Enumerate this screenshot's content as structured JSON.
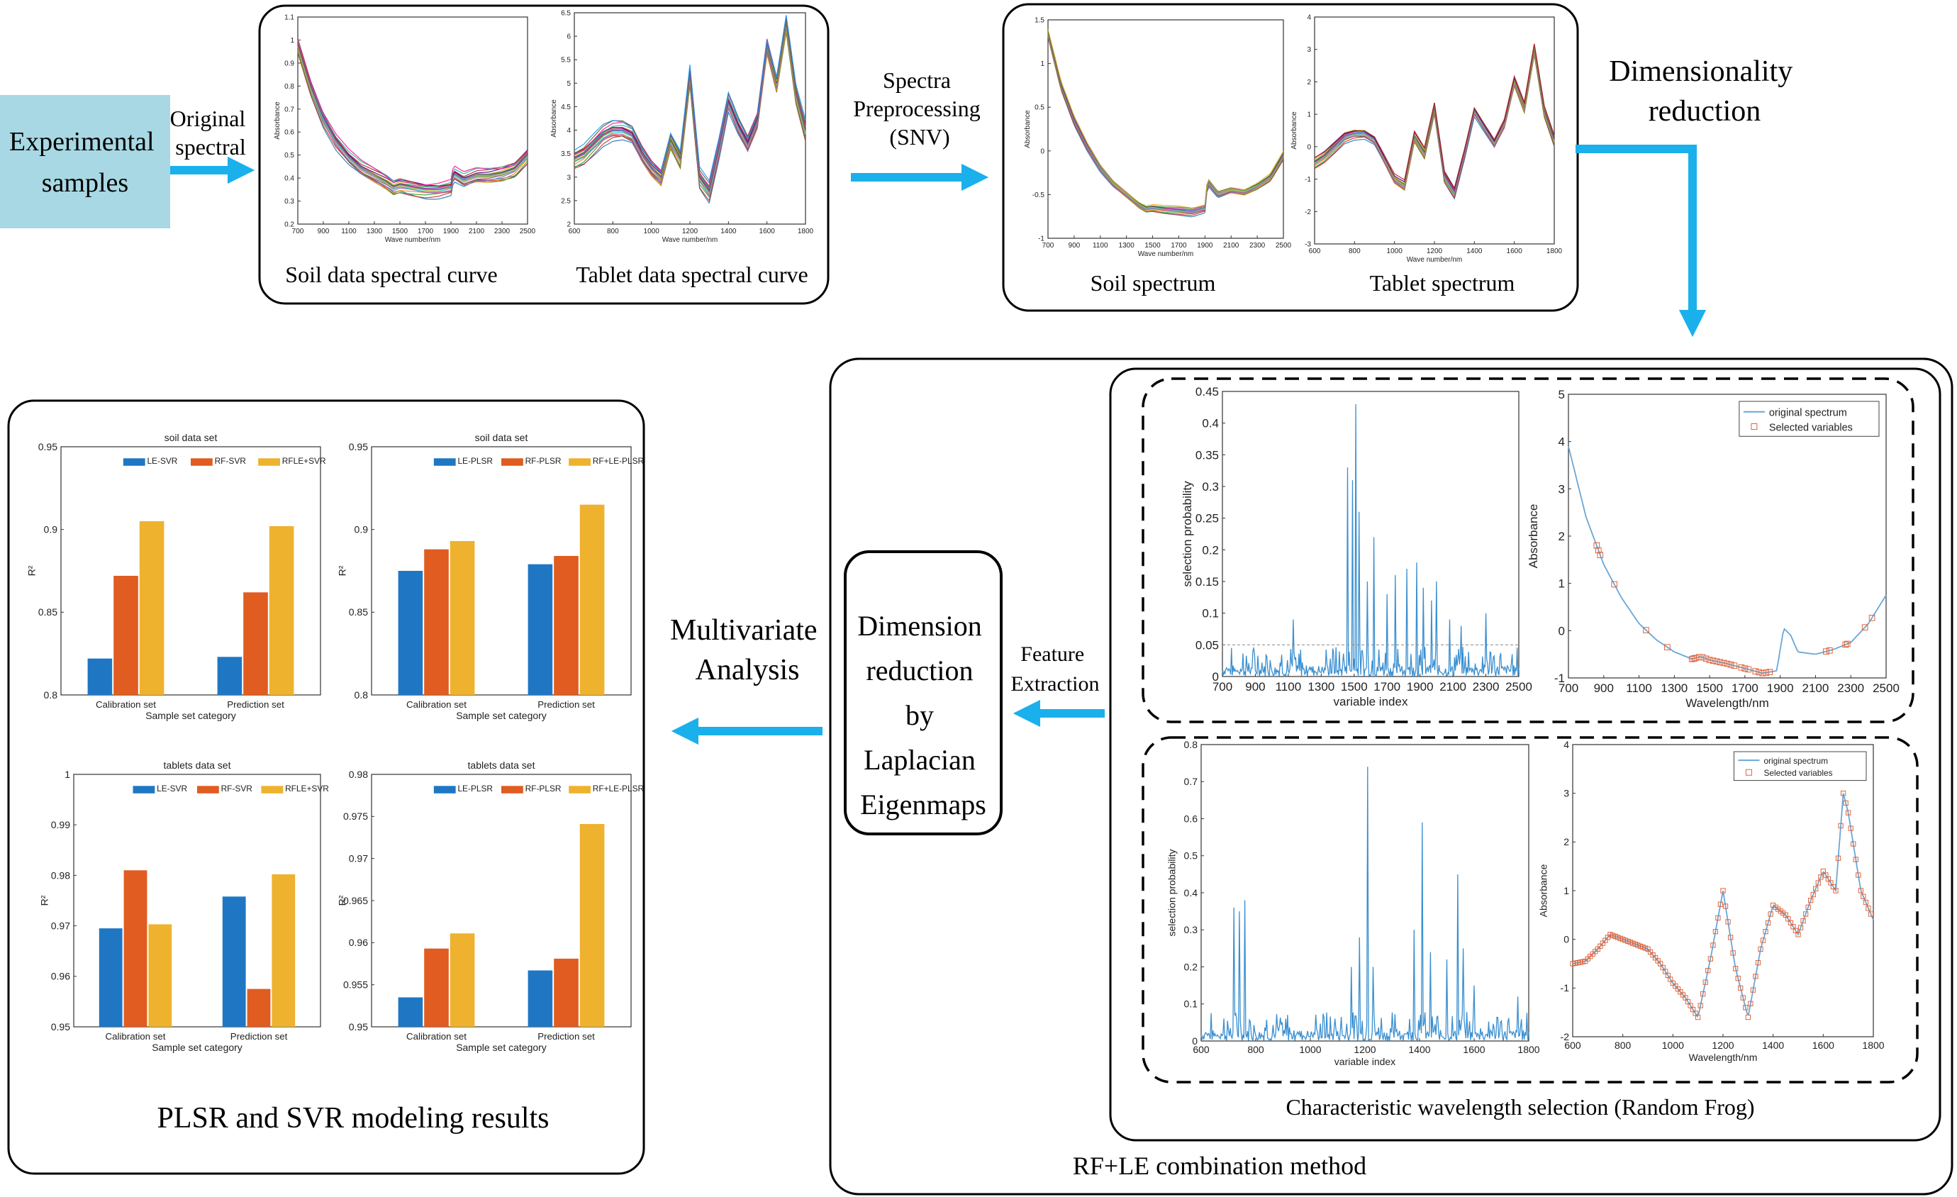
{
  "labels": {
    "experimental_samples": [
      "Experimental",
      "samples"
    ],
    "original_spectral": [
      "Original",
      "spectral"
    ],
    "spectra_preprocessing": [
      "Spectra",
      "Preprocessing",
      "(SNV)"
    ],
    "dimensionality_reduction": [
      "Dimensionality",
      "reduction"
    ],
    "multivariate_analysis": [
      "Multivariate",
      "Analysis"
    ],
    "dimension_reduction_le": [
      "Dimension",
      "reduction",
      "by",
      "Laplacian",
      "Eigenmaps"
    ],
    "feature_extraction": [
      "Feature",
      "Extraction"
    ],
    "soil_data_spectral_curve": "Soil data spectral curve",
    "tablet_data_spectral_curve": "Tablet data spectral curve",
    "soil_spectrum": "Soil spectrum",
    "tablet_spectrum": "Tablet spectrum",
    "characteristic_wavelength_selection": "Characteristic wavelength selection (Random Frog)",
    "rf_le_combination": "RF+LE combination method",
    "plsr_svr_results": "PLSR and SVR modeling results"
  },
  "colors": {
    "arrow": "#1ab0ec",
    "sample_box": "#a8d8e3",
    "bar_blue": "#1f77c4",
    "bar_orange": "#e05c21",
    "bar_yellow": "#eeb22e",
    "spectrum_line": "#3a8fd0",
    "selected_marker": "#e0643a"
  },
  "chart_data": [
    {
      "id": "raw-soil",
      "type": "line",
      "xlabel": "Wave number/nm",
      "ylabel": "Absorbance",
      "xlim": [
        700,
        2500
      ],
      "ylim": [
        0.2,
        1.1
      ],
      "xticks": [
        "700",
        "900",
        "1100",
        "1300",
        "1500",
        "1700",
        "1900",
        "2100",
        "2300",
        "2500"
      ],
      "yticks": [
        "0.2",
        "0.3",
        "0.4",
        "0.5",
        "0.6",
        "0.7",
        "0.8",
        "0.9",
        "1",
        "1.1"
      ],
      "x": [
        700,
        800,
        900,
        1000,
        1100,
        1200,
        1300,
        1400,
        1450,
        1500,
        1600,
        1700,
        1800,
        1900,
        1920,
        2000,
        2100,
        2200,
        2300,
        2400,
        2500
      ],
      "y": [
        0.98,
        0.8,
        0.66,
        0.56,
        0.49,
        0.44,
        0.41,
        0.38,
        0.36,
        0.37,
        0.36,
        0.35,
        0.35,
        0.36,
        0.42,
        0.39,
        0.41,
        0.41,
        0.42,
        0.44,
        0.5
      ],
      "bands": 18,
      "band_spread": 0.03
    },
    {
      "id": "raw-tablet",
      "type": "line",
      "xlabel": "Wave number/nm",
      "ylabel": "Absorbance",
      "xlim": [
        600,
        1800
      ],
      "ylim": [
        2,
        6.5
      ],
      "xticks": [
        "600",
        "800",
        "1000",
        "1200",
        "1400",
        "1600",
        "1800"
      ],
      "yticks": [
        "2",
        "2.5",
        "3",
        "3.5",
        "4",
        "4.5",
        "5",
        "5.5",
        "6",
        "6.5"
      ],
      "x": [
        600,
        650,
        700,
        750,
        800,
        850,
        900,
        950,
        1000,
        1050,
        1100,
        1150,
        1200,
        1250,
        1300,
        1350,
        1400,
        1450,
        1500,
        1550,
        1600,
        1650,
        1700,
        1750,
        1800
      ],
      "y": [
        3.4,
        3.5,
        3.7,
        3.9,
        4.0,
        4.0,
        3.9,
        3.5,
        3.2,
        3.0,
        3.8,
        3.4,
        5.2,
        3.0,
        2.7,
        3.6,
        4.6,
        4.1,
        3.7,
        4.2,
        5.8,
        5.0,
        6.3,
        4.8,
        4.0
      ],
      "bands": 20,
      "band_spread": 0.18
    },
    {
      "id": "snv-soil",
      "type": "line",
      "xlabel": "Wave number/nm",
      "ylabel": "Absorbance",
      "xlim": [
        700,
        2500
      ],
      "ylim": [
        -1,
        1.5
      ],
      "xticks": [
        "700",
        "900",
        "1100",
        "1300",
        "1500",
        "1700",
        "1900",
        "2100",
        "2300",
        "2500"
      ],
      "yticks": [
        "-1",
        "-0.5",
        "0",
        "0.5",
        "1",
        "1.5"
      ],
      "x": [
        700,
        800,
        900,
        1000,
        1100,
        1200,
        1300,
        1400,
        1450,
        1500,
        1600,
        1700,
        1800,
        1900,
        1920,
        2000,
        2100,
        2200,
        2300,
        2400,
        2500
      ],
      "y": [
        1.35,
        0.75,
        0.35,
        0.05,
        -0.2,
        -0.38,
        -0.5,
        -0.62,
        -0.66,
        -0.65,
        -0.67,
        -0.68,
        -0.7,
        -0.66,
        -0.35,
        -0.5,
        -0.45,
        -0.47,
        -0.4,
        -0.3,
        -0.05
      ],
      "bands": 14,
      "band_spread": 0.04
    },
    {
      "id": "snv-tablet",
      "type": "line",
      "xlabel": "Wave number/nm",
      "ylabel": "Absorbance",
      "xlim": [
        600,
        1800
      ],
      "ylim": [
        -3,
        4
      ],
      "xticks": [
        "600",
        "800",
        "1000",
        "1200",
        "1400",
        "1600",
        "1800"
      ],
      "yticks": [
        "-3",
        "-2",
        "-1",
        "0",
        "1",
        "2",
        "3",
        "4"
      ],
      "x": [
        600,
        650,
        700,
        750,
        800,
        850,
        900,
        950,
        1000,
        1050,
        1100,
        1150,
        1200,
        1250,
        1300,
        1350,
        1400,
        1450,
        1500,
        1550,
        1600,
        1650,
        1700,
        1750,
        1800
      ],
      "y": [
        -0.5,
        -0.3,
        0.0,
        0.3,
        0.4,
        0.4,
        0.2,
        -0.4,
        -1.0,
        -1.2,
        0.3,
        -0.2,
        1.2,
        -0.9,
        -1.4,
        -0.2,
        1.1,
        0.6,
        0.1,
        0.7,
        2.0,
        1.2,
        3.0,
        1.1,
        0.2
      ],
      "bands": 16,
      "band_spread": 0.15
    },
    {
      "id": "rf-soil-prob",
      "type": "line",
      "xlabel": "variable index",
      "ylabel": "selection probability",
      "xlim": [
        700,
        2500
      ],
      "ylim": [
        0,
        0.45
      ],
      "xticks": [
        "700",
        "900",
        "1100",
        "1300",
        "1500",
        "1700",
        "1900",
        "2100",
        "2300",
        "2500"
      ],
      "yticks": [
        "0",
        "0.05",
        "0.1",
        "0.15",
        "0.2",
        "0.25",
        "0.3",
        "0.35",
        "0.4",
        "0.45"
      ],
      "threshold": 0.05,
      "spikes": [
        [
          1130,
          0.09
        ],
        [
          1460,
          0.33
        ],
        [
          1490,
          0.31
        ],
        [
          1510,
          0.43
        ],
        [
          1530,
          0.26
        ],
        [
          1580,
          0.15
        ],
        [
          1620,
          0.22
        ],
        [
          1700,
          0.13
        ],
        [
          1750,
          0.16
        ],
        [
          1820,
          0.17
        ],
        [
          1880,
          0.18
        ],
        [
          1920,
          0.14
        ],
        [
          1970,
          0.12
        ],
        [
          2000,
          0.15
        ],
        [
          2080,
          0.09
        ],
        [
          2150,
          0.08
        ],
        [
          2300,
          0.1
        ]
      ],
      "noise_level": 0.03
    },
    {
      "id": "rf-soil-selected",
      "type": "line",
      "xlabel": "Wavelength/nm",
      "ylabel": "Absorbance",
      "xlim": [
        700,
        2500
      ],
      "ylim": [
        -1,
        5
      ],
      "xticks": [
        "700",
        "900",
        "1100",
        "1300",
        "1500",
        "1700",
        "1900",
        "2100",
        "2300",
        "2500"
      ],
      "yticks": [
        "-1",
        "0",
        "1",
        "2",
        "3",
        "4",
        "5"
      ],
      "legend": [
        "original spectrum",
        "Selected variables"
      ],
      "x": [
        700,
        800,
        900,
        1000,
        1100,
        1200,
        1300,
        1400,
        1450,
        1500,
        1600,
        1700,
        1800,
        1880,
        1920,
        1960,
        2000,
        2100,
        2200,
        2300,
        2400,
        2500
      ],
      "y": [
        3.9,
        2.4,
        1.4,
        0.7,
        0.15,
        -0.2,
        -0.45,
        -0.6,
        -0.55,
        -0.62,
        -0.7,
        -0.8,
        -0.9,
        -0.85,
        0.05,
        -0.1,
        -0.45,
        -0.5,
        -0.4,
        -0.25,
        0.15,
        0.75
      ],
      "selected_x": [
        860,
        870,
        880,
        960,
        1140,
        1260,
        1400,
        1410,
        1420,
        1440,
        1460,
        1480,
        1500,
        1520,
        1540,
        1560,
        1580,
        1600,
        1620,
        1640,
        1680,
        1700,
        1720,
        1760,
        1780,
        1800,
        1820,
        1840,
        2160,
        2180,
        2270,
        2280,
        2380,
        2420
      ]
    },
    {
      "id": "rf-tablet-prob",
      "type": "line",
      "xlabel": "variable index",
      "ylabel": "selection probability",
      "xlim": [
        600,
        1800
      ],
      "ylim": [
        0,
        0.8
      ],
      "xticks": [
        "600",
        "800",
        "1000",
        "1200",
        "1400",
        "1600",
        "1800"
      ],
      "yticks": [
        "0",
        "0.1",
        "0.2",
        "0.3",
        "0.4",
        "0.5",
        "0.6",
        "0.7",
        "0.8"
      ],
      "spikes": [
        [
          720,
          0.36
        ],
        [
          740,
          0.35
        ],
        [
          760,
          0.38
        ],
        [
          1150,
          0.2
        ],
        [
          1180,
          0.28
        ],
        [
          1210,
          0.74
        ],
        [
          1230,
          0.2
        ],
        [
          1380,
          0.3
        ],
        [
          1410,
          0.59
        ],
        [
          1440,
          0.24
        ],
        [
          1500,
          0.22
        ],
        [
          1540,
          0.45
        ],
        [
          1560,
          0.25
        ],
        [
          1600,
          0.15
        ],
        [
          1760,
          0.12
        ]
      ],
      "noise_level": 0.05
    },
    {
      "id": "rf-tablet-selected",
      "type": "line",
      "xlabel": "Wavelength/nm",
      "ylabel": "Absorbance",
      "xlim": [
        600,
        1800
      ],
      "ylim": [
        -2,
        4
      ],
      "xticks": [
        "600",
        "800",
        "1000",
        "1200",
        "1400",
        "1600",
        "1800"
      ],
      "yticks": [
        "-2",
        "-1",
        "0",
        "1",
        "2",
        "3",
        "4"
      ],
      "legend": [
        "original spectrum",
        "Selected variables"
      ],
      "x": [
        600,
        650,
        700,
        750,
        800,
        850,
        900,
        950,
        1000,
        1050,
        1100,
        1150,
        1200,
        1250,
        1300,
        1350,
        1400,
        1450,
        1500,
        1550,
        1600,
        1650,
        1680,
        1700,
        1750,
        1800
      ],
      "y": [
        -0.5,
        -0.45,
        -0.2,
        0.1,
        0.0,
        -0.1,
        -0.2,
        -0.5,
        -0.9,
        -1.2,
        -1.6,
        -0.4,
        1.0,
        -0.6,
        -1.6,
        -0.2,
        0.7,
        0.5,
        0.1,
        0.8,
        1.4,
        1.0,
        3.0,
        2.6,
        1.0,
        0.4
      ],
      "selected_range": [
        600,
        1790
      ]
    },
    {
      "id": "soil-svr",
      "type": "bar",
      "title": "soil data set",
      "xlabel": "Sample set category",
      "ylabel": "R²",
      "ylim": [
        0.8,
        0.95
      ],
      "yticks": [
        "0.8",
        "0.85",
        "0.9",
        "0.95"
      ],
      "categories": [
        "Calibration set",
        "Prediction set"
      ],
      "series": [
        {
          "name": "LE-SVR",
          "values": [
            0.822,
            0.823
          ]
        },
        {
          "name": "RF-SVR",
          "values": [
            0.872,
            0.862
          ]
        },
        {
          "name": "RFLE+SVR",
          "values": [
            0.905,
            0.902
          ]
        }
      ]
    },
    {
      "id": "soil-plsr",
      "type": "bar",
      "title": "soil data set",
      "xlabel": "Sample set category",
      "ylabel": "R²",
      "ylim": [
        0.8,
        0.95
      ],
      "yticks": [
        "0.8",
        "0.85",
        "0.9",
        "0.95"
      ],
      "categories": [
        "Calibration set",
        "Prediction set"
      ],
      "series": [
        {
          "name": "LE-PLSR",
          "values": [
            0.875,
            0.879
          ]
        },
        {
          "name": "RF-PLSR",
          "values": [
            0.888,
            0.884
          ]
        },
        {
          "name": "RF+LE-PLSR",
          "values": [
            0.893,
            0.915
          ]
        }
      ]
    },
    {
      "id": "tablet-svr",
      "type": "bar",
      "title": "tablets data set",
      "xlabel": "Sample set category",
      "ylabel": "R²",
      "ylim": [
        0.95,
        1
      ],
      "yticks": [
        "0.95",
        "0.96",
        "0.97",
        "0.98",
        "0.99",
        "1"
      ],
      "categories": [
        "Calibration set",
        "Prediction set"
      ],
      "series": [
        {
          "name": "LE-SVR",
          "values": [
            0.9695,
            0.9758
          ]
        },
        {
          "name": "RF-SVR",
          "values": [
            0.981,
            0.9575
          ]
        },
        {
          "name": "RFLE+SVR",
          "values": [
            0.9703,
            0.9802
          ]
        }
      ]
    },
    {
      "id": "tablet-plsr",
      "type": "bar",
      "title": "tablets data set",
      "xlabel": "Sample set category",
      "ylabel": "R²",
      "ylim": [
        0.95,
        0.98
      ],
      "yticks": [
        "0.95",
        "0.955",
        "0.96",
        "0.965",
        "0.97",
        "0.975",
        "0.98"
      ],
      "categories": [
        "Calibration set",
        "Prediction set"
      ],
      "series": [
        {
          "name": "LE-PLSR",
          "values": [
            0.9535,
            0.9567
          ]
        },
        {
          "name": "RF-PLSR",
          "values": [
            0.9593,
            0.9581
          ]
        },
        {
          "name": "RF+LE-PLSR",
          "values": [
            0.9611,
            0.9741
          ]
        }
      ]
    }
  ]
}
